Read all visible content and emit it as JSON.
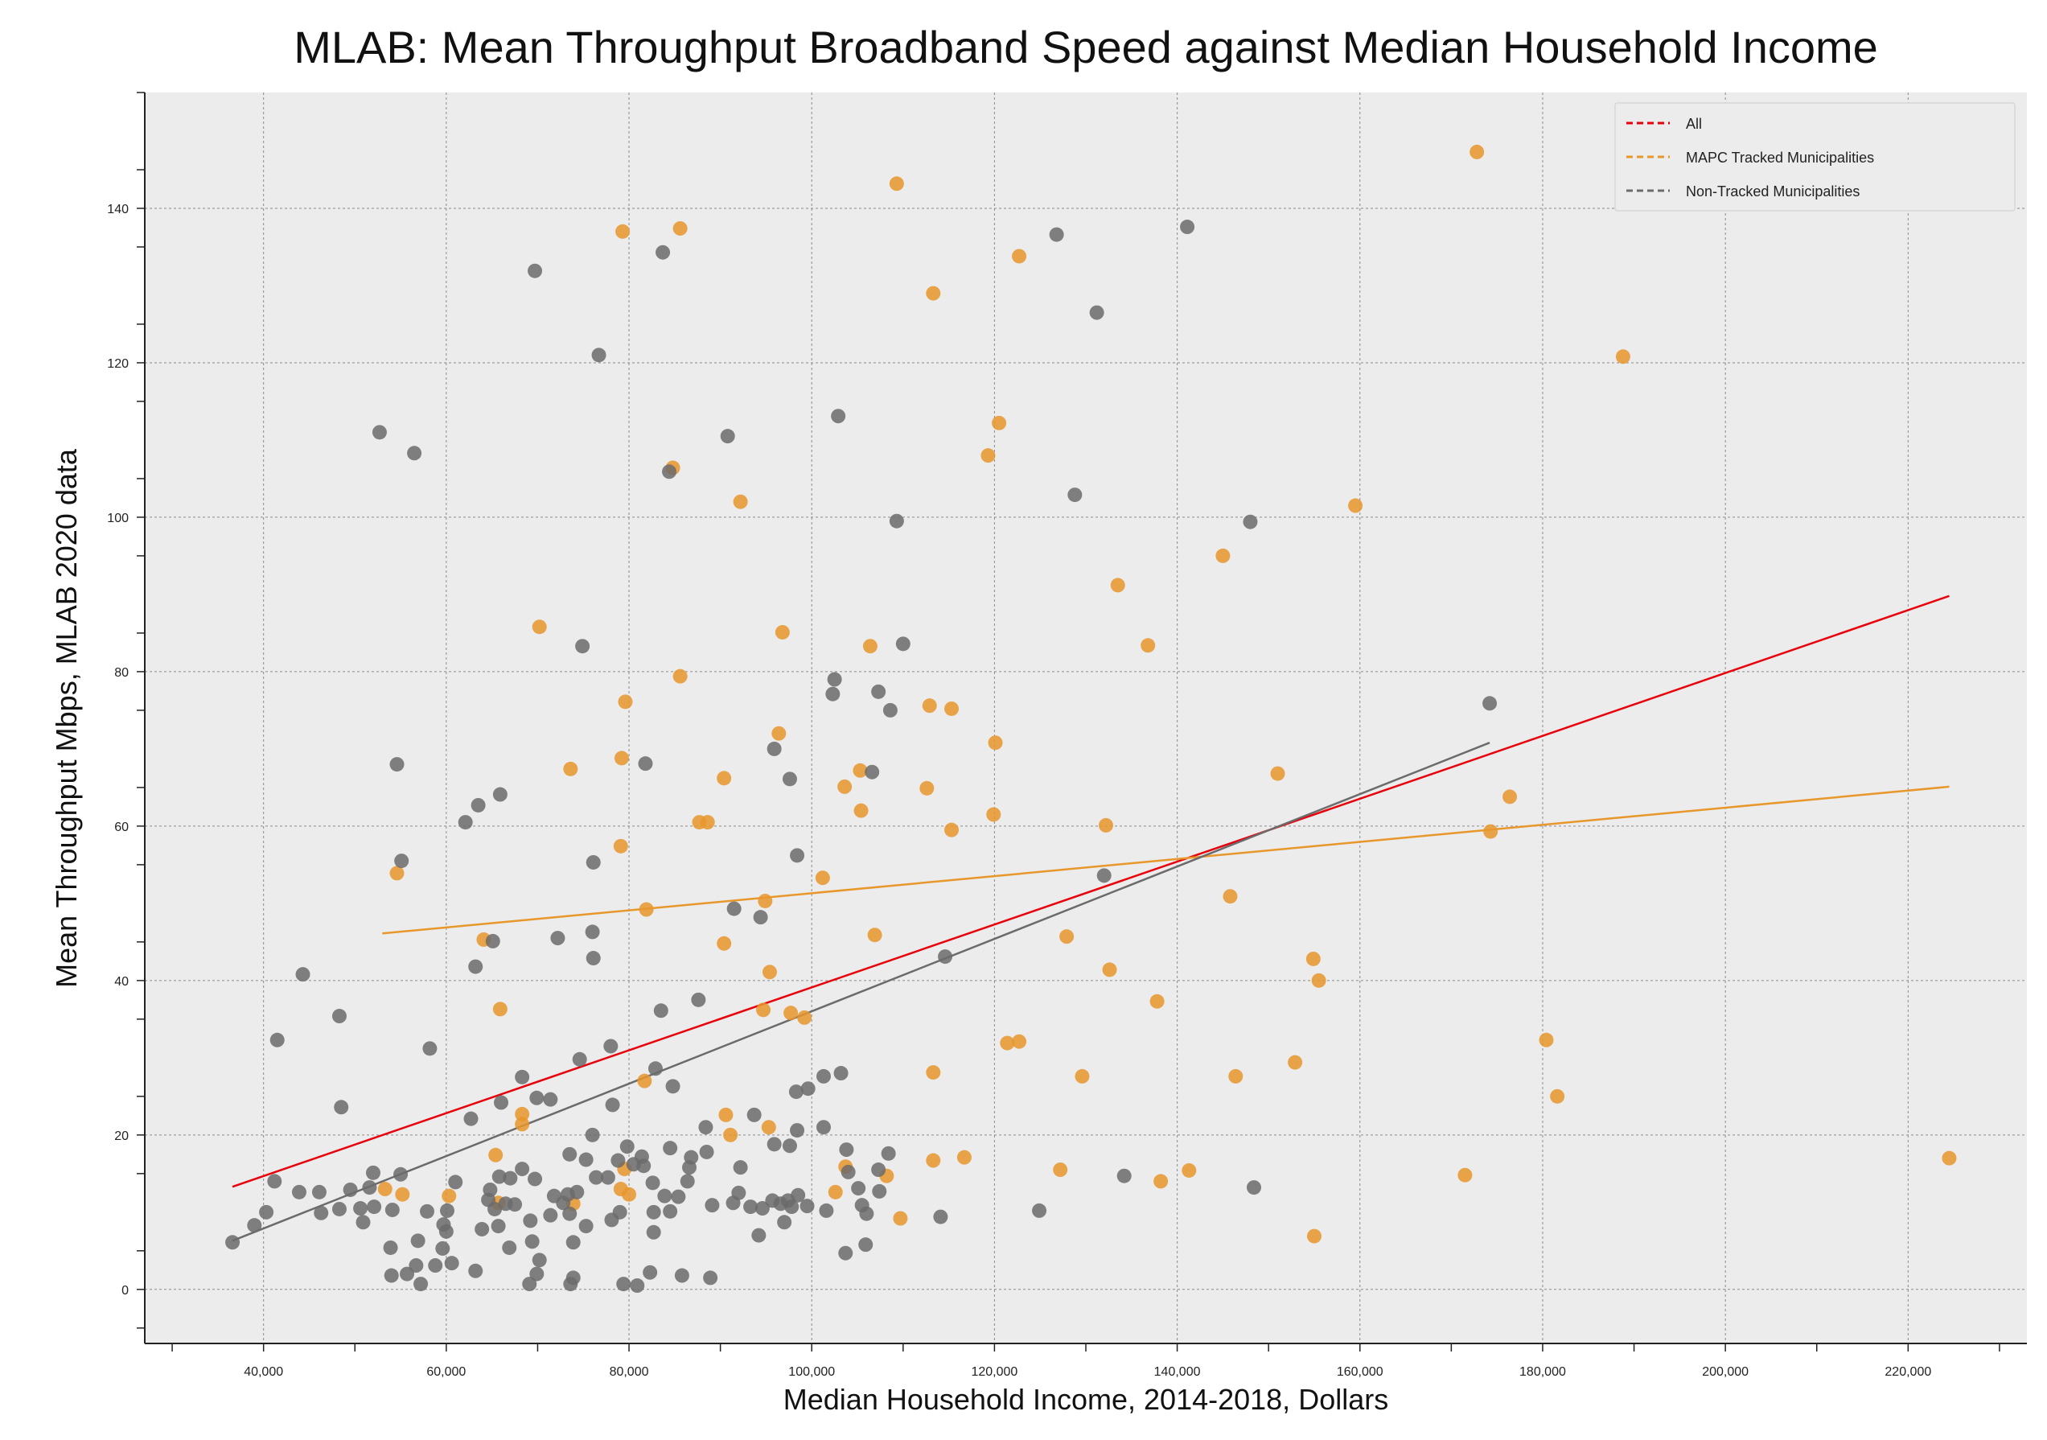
{
  "chart_data": {
    "type": "scatter",
    "title": "MLAB: Mean Throughput Broadband Speed against Median Household Income",
    "xlabel": "Median Household Income, 2014-2018, Dollars",
    "ylabel": "Mean Throughput Mbps, MLAB 2020 data",
    "xlim": [
      27000,
      233000
    ],
    "ylim": [
      -7,
      155
    ],
    "x_ticks": [
      40000,
      60000,
      80000,
      100000,
      120000,
      140000,
      160000,
      180000,
      200000,
      220000
    ],
    "x_tick_labels": [
      "40,000",
      "60,000",
      "80,000",
      "100,000",
      "120,000",
      "140,000",
      "160,000",
      "180,000",
      "200,000",
      "220,000"
    ],
    "y_ticks": [
      0,
      20,
      40,
      60,
      80,
      100,
      120,
      140
    ],
    "y_tick_labels": [
      "0",
      "20",
      "40",
      "60",
      "80",
      "100",
      "120",
      "140"
    ],
    "grid": true,
    "legend_position": "top-right",
    "colors": {
      "all": "#e8000b",
      "mapc": "#e8972b",
      "non_tracked": "#6b6b6b",
      "background": "#ececec",
      "grid": "#8a8a8a"
    },
    "legend": [
      {
        "label": "All",
        "color": "#e8000b"
      },
      {
        "label": "MAPC Tracked Municipalities",
        "color": "#e8972b"
      },
      {
        "label": "Non-Tracked Municipalities",
        "color": "#6b6b6b"
      }
    ],
    "trend_lines": [
      {
        "name": "All",
        "color": "#e8000b",
        "x": [
          36600,
          224500
        ],
        "y": [
          13.3,
          89.8
        ]
      },
      {
        "name": "MAPC Tracked Municipalities",
        "color": "#e8972b",
        "x": [
          53000,
          224500
        ],
        "y": [
          46.1,
          65.1
        ]
      },
      {
        "name": "Non-Tracked Municipalities",
        "color": "#6b6b6b",
        "x": [
          36600,
          174200
        ],
        "y": [
          6.3,
          70.8
        ]
      }
    ],
    "series": [
      {
        "name": "MAPC Tracked Municipalities",
        "color": "#e8972b",
        "points": [
          [
            172800,
            147.3
          ],
          [
            109300,
            143.2
          ],
          [
            79300,
            137
          ],
          [
            85600,
            137.4
          ],
          [
            113300,
            129
          ],
          [
            122700,
            133.8
          ],
          [
            188800,
            120.8
          ],
          [
            120500,
            112.2
          ],
          [
            84800,
            106.4
          ],
          [
            119300,
            108
          ],
          [
            92200,
            102
          ],
          [
            159500,
            101.5
          ],
          [
            145000,
            95
          ],
          [
            133500,
            91.2
          ],
          [
            70200,
            85.8
          ],
          [
            96800,
            85.1
          ],
          [
            106400,
            83.3
          ],
          [
            136800,
            83.4
          ],
          [
            85600,
            79.4
          ],
          [
            79600,
            76.1
          ],
          [
            112900,
            75.6
          ],
          [
            115300,
            75.2
          ],
          [
            96400,
            72
          ],
          [
            120100,
            70.8
          ],
          [
            79200,
            68.8
          ],
          [
            73600,
            67.4
          ],
          [
            90400,
            66.2
          ],
          [
            105300,
            67.2
          ],
          [
            151000,
            66.8
          ],
          [
            103600,
            65.1
          ],
          [
            112600,
            64.9
          ],
          [
            176400,
            63.8
          ],
          [
            87700,
            60.5
          ],
          [
            88600,
            60.5
          ],
          [
            105400,
            62
          ],
          [
            119900,
            61.5
          ],
          [
            132200,
            60.1
          ],
          [
            115300,
            59.5
          ],
          [
            174300,
            59.3
          ],
          [
            79100,
            57.4
          ],
          [
            54600,
            53.9
          ],
          [
            101200,
            53.3
          ],
          [
            94900,
            50.3
          ],
          [
            81900,
            49.2
          ],
          [
            145800,
            50.9
          ],
          [
            64100,
            45.3
          ],
          [
            90400,
            44.8
          ],
          [
            106900,
            45.9
          ],
          [
            127900,
            45.7
          ],
          [
            154900,
            42.8
          ],
          [
            132600,
            41.4
          ],
          [
            95400,
            41.1
          ],
          [
            155500,
            40
          ],
          [
            65900,
            36.3
          ],
          [
            94700,
            36.2
          ],
          [
            97700,
            35.8
          ],
          [
            99200,
            35.2
          ],
          [
            137800,
            37.3
          ],
          [
            121400,
            31.9
          ],
          [
            122700,
            32.1
          ],
          [
            180400,
            32.3
          ],
          [
            152900,
            29.4
          ],
          [
            113300,
            28.1
          ],
          [
            129600,
            27.6
          ],
          [
            146400,
            27.6
          ],
          [
            81700,
            27
          ],
          [
            181600,
            25
          ],
          [
            68300,
            22.7
          ],
          [
            90600,
            22.6
          ],
          [
            95300,
            21
          ],
          [
            91100,
            20
          ],
          [
            68300,
            21.4
          ],
          [
            65400,
            17.4
          ],
          [
            113300,
            16.7
          ],
          [
            116700,
            17.1
          ],
          [
            108200,
            14.7
          ],
          [
            127200,
            15.5
          ],
          [
            141300,
            15.4
          ],
          [
            171500,
            14.8
          ],
          [
            224500,
            17
          ],
          [
            53300,
            13
          ],
          [
            55200,
            12.3
          ],
          [
            60300,
            12.1
          ],
          [
            79100,
            13
          ],
          [
            80000,
            12.3
          ],
          [
            73900,
            11.1
          ],
          [
            102600,
            12.6
          ],
          [
            103700,
            15.9
          ],
          [
            65700,
            11.2
          ],
          [
            109700,
            9.2
          ],
          [
            138200,
            14
          ],
          [
            155000,
            6.9
          ],
          [
            79500,
            15.6
          ]
        ]
      },
      {
        "name": "Non-Tracked Municipalities",
        "color": "#6b6b6b",
        "points": [
          [
            141100,
            137.6
          ],
          [
            126800,
            136.6
          ],
          [
            69700,
            131.9
          ],
          [
            83700,
            134.3
          ],
          [
            131200,
            126.5
          ],
          [
            76700,
            121
          ],
          [
            52700,
            111
          ],
          [
            56500,
            108.3
          ],
          [
            90800,
            110.5
          ],
          [
            102900,
            113.1
          ],
          [
            84400,
            105.9
          ],
          [
            128800,
            102.9
          ],
          [
            109300,
            99.5
          ],
          [
            148000,
            99.4
          ],
          [
            74900,
            83.3
          ],
          [
            110000,
            83.6
          ],
          [
            102500,
            79
          ],
          [
            107300,
            77.4
          ],
          [
            102300,
            77.1
          ],
          [
            108600,
            75
          ],
          [
            174200,
            75.9
          ],
          [
            95900,
            70
          ],
          [
            54600,
            68
          ],
          [
            81800,
            68.1
          ],
          [
            97600,
            66.1
          ],
          [
            106600,
            67
          ],
          [
            63500,
            62.7
          ],
          [
            65900,
            64.1
          ],
          [
            62100,
            60.5
          ],
          [
            55100,
            55.5
          ],
          [
            76100,
            55.3
          ],
          [
            98400,
            56.2
          ],
          [
            132000,
            53.6
          ],
          [
            91500,
            49.3
          ],
          [
            94400,
            48.2
          ],
          [
            65100,
            45.1
          ],
          [
            72200,
            45.5
          ],
          [
            76000,
            46.3
          ],
          [
            44300,
            40.8
          ],
          [
            63200,
            41.8
          ],
          [
            76100,
            42.9
          ],
          [
            114600,
            43.1
          ],
          [
            48300,
            35.4
          ],
          [
            41500,
            32.3
          ],
          [
            58200,
            31.2
          ],
          [
            74600,
            29.8
          ],
          [
            78000,
            31.5
          ],
          [
            87600,
            37.5
          ],
          [
            83500,
            36.1
          ],
          [
            68300,
            27.5
          ],
          [
            82900,
            28.6
          ],
          [
            84800,
            26.3
          ],
          [
            103200,
            28
          ],
          [
            101300,
            27.6
          ],
          [
            69900,
            24.8
          ],
          [
            71400,
            24.6
          ],
          [
            66000,
            24.2
          ],
          [
            48500,
            23.6
          ],
          [
            78200,
            23.9
          ],
          [
            62700,
            22.1
          ],
          [
            93700,
            22.6
          ],
          [
            98300,
            25.6
          ],
          [
            99600,
            26
          ],
          [
            88400,
            21
          ],
          [
            98400,
            20.6
          ],
          [
            101300,
            21
          ],
          [
            76000,
            20
          ],
          [
            79800,
            18.5
          ],
          [
            84500,
            18.3
          ],
          [
            88500,
            17.8
          ],
          [
            95900,
            18.8
          ],
          [
            97600,
            18.6
          ],
          [
            103800,
            18.1
          ],
          [
            108400,
            17.6
          ],
          [
            81400,
            17.2
          ],
          [
            73500,
            17.5
          ],
          [
            75300,
            16.8
          ],
          [
            78800,
            16.7
          ],
          [
            80500,
            16.2
          ],
          [
            86800,
            17.1
          ],
          [
            81600,
            16
          ],
          [
            86600,
            15.8
          ],
          [
            92200,
            15.8
          ],
          [
            104000,
            15.2
          ],
          [
            107300,
            15.5
          ],
          [
            134200,
            14.7
          ],
          [
            52000,
            15.1
          ],
          [
            55000,
            14.9
          ],
          [
            61000,
            13.9
          ],
          [
            65800,
            14.6
          ],
          [
            67000,
            14.4
          ],
          [
            68300,
            15.6
          ],
          [
            69700,
            14.3
          ],
          [
            76400,
            14.5
          ],
          [
            77700,
            14.5
          ],
          [
            86400,
            14
          ],
          [
            82600,
            13.8
          ],
          [
            105100,
            13.1
          ],
          [
            107400,
            12.7
          ],
          [
            148400,
            13.2
          ],
          [
            41200,
            14
          ],
          [
            43900,
            12.6
          ],
          [
            46100,
            12.6
          ],
          [
            49500,
            12.9
          ],
          [
            51600,
            13.2
          ],
          [
            57900,
            10.1
          ],
          [
            60100,
            10.2
          ],
          [
            60000,
            7.5
          ],
          [
            63900,
            7.8
          ],
          [
            64800,
            12.9
          ],
          [
            64600,
            11.6
          ],
          [
            65300,
            10.4
          ],
          [
            66500,
            11.1
          ],
          [
            67500,
            11
          ],
          [
            69200,
            8.9
          ],
          [
            71800,
            12.1
          ],
          [
            71400,
            9.6
          ],
          [
            72800,
            11.2
          ],
          [
            73300,
            12.3
          ],
          [
            73500,
            9.8
          ],
          [
            74300,
            12.6
          ],
          [
            78100,
            9
          ],
          [
            79000,
            10
          ],
          [
            82700,
            10
          ],
          [
            83900,
            12.1
          ],
          [
            84500,
            10.1
          ],
          [
            85400,
            12
          ],
          [
            89100,
            10.9
          ],
          [
            91400,
            11.2
          ],
          [
            92000,
            12.5
          ],
          [
            93300,
            10.7
          ],
          [
            94600,
            10.5
          ],
          [
            95700,
            11.5
          ],
          [
            96600,
            11.1
          ],
          [
            97400,
            11.5
          ],
          [
            97800,
            10.7
          ],
          [
            98500,
            12.2
          ],
          [
            99500,
            10.8
          ],
          [
            101600,
            10.2
          ],
          [
            105500,
            10.9
          ],
          [
            106000,
            9.8
          ],
          [
            114100,
            9.4
          ],
          [
            124900,
            10.2
          ],
          [
            40300,
            10
          ],
          [
            46300,
            9.9
          ],
          [
            48300,
            10.4
          ],
          [
            50600,
            10.5
          ],
          [
            50900,
            8.7
          ],
          [
            52100,
            10.7
          ],
          [
            54100,
            10.3
          ],
          [
            56900,
            6.3
          ],
          [
            59700,
            8.4
          ],
          [
            65700,
            8.2
          ],
          [
            66900,
            5.4
          ],
          [
            69400,
            6.2
          ],
          [
            70200,
            3.8
          ],
          [
            73900,
            6.1
          ],
          [
            75300,
            8.2
          ],
          [
            53900,
            5.4
          ],
          [
            56700,
            3.1
          ],
          [
            58800,
            3.1
          ],
          [
            59600,
            5.3
          ],
          [
            60600,
            3.4
          ],
          [
            63200,
            2.4
          ],
          [
            69900,
            2
          ],
          [
            82300,
            2.2
          ],
          [
            85800,
            1.8
          ],
          [
            88900,
            1.5
          ],
          [
            54000,
            1.8
          ],
          [
            55700,
            2
          ],
          [
            57200,
            0.7
          ],
          [
            69100,
            0.7
          ],
          [
            73600,
            0.7
          ],
          [
            73900,
            1.5
          ],
          [
            79400,
            0.7
          ],
          [
            80900,
            0.5
          ],
          [
            103700,
            4.7
          ],
          [
            105900,
            5.8
          ],
          [
            94200,
            7
          ],
          [
            97000,
            8.7
          ],
          [
            36600,
            6.1
          ],
          [
            39000,
            8.3
          ],
          [
            82700,
            7.4
          ]
        ]
      }
    ]
  }
}
